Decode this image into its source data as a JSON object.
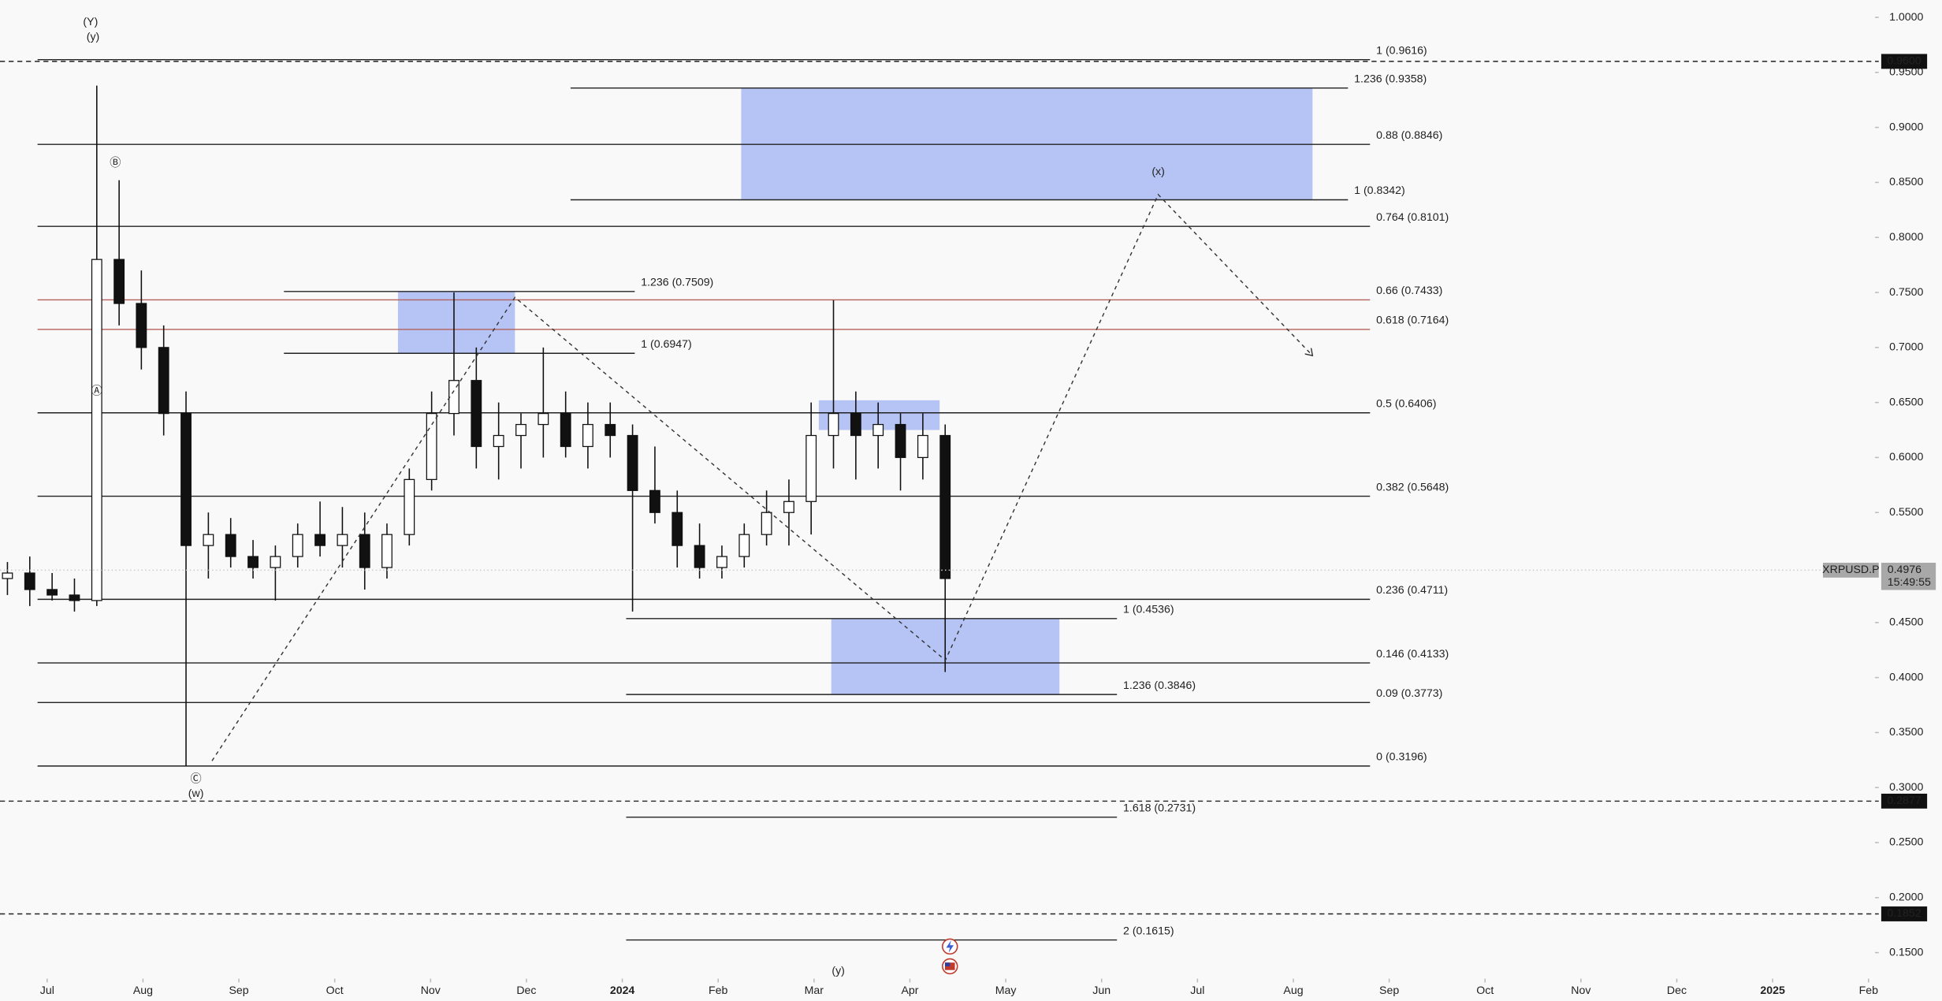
{
  "chart_data": {
    "type": "candlestick",
    "symbol": "XRPUSD.P",
    "xlim": [
      -0.4916,
      19.068
    ],
    "ylim": [
      0.1263,
      1.0158
    ],
    "xticks": [
      {
        "value": 0,
        "label": "Jul"
      },
      {
        "value": 1,
        "label": "Aug"
      },
      {
        "value": 2,
        "label": "Sep"
      },
      {
        "value": 3,
        "label": "Oct"
      },
      {
        "value": 4,
        "label": "Nov"
      },
      {
        "value": 5,
        "label": "Dec"
      },
      {
        "value": 6,
        "label": "2024"
      },
      {
        "value": 7,
        "label": "Feb"
      },
      {
        "value": 8,
        "label": "Mar"
      },
      {
        "value": 9,
        "label": "Apr"
      },
      {
        "value": 10,
        "label": "May"
      },
      {
        "value": 11,
        "label": "Jun"
      },
      {
        "value": 12,
        "label": "Jul"
      },
      {
        "value": 13,
        "label": "Aug"
      },
      {
        "value": 14,
        "label": "Sep"
      },
      {
        "value": 15,
        "label": "Oct"
      },
      {
        "value": 16,
        "label": "Nov"
      },
      {
        "value": 17,
        "label": "Dec"
      },
      {
        "value": 18,
        "label": "2025"
      },
      {
        "value": 19,
        "label": "Feb"
      }
    ],
    "yticks": [
      {
        "value": 1.0,
        "label": "1.0000"
      },
      {
        "value": 0.95,
        "label": "0.9500"
      },
      {
        "value": 0.9,
        "label": "0.9000"
      },
      {
        "value": 0.85,
        "label": "0.8500"
      },
      {
        "value": 0.8,
        "label": "0.8000"
      },
      {
        "value": 0.75,
        "label": "0.7500"
      },
      {
        "value": 0.7,
        "label": "0.7000"
      },
      {
        "value": 0.65,
        "label": "0.6500"
      },
      {
        "value": 0.6,
        "label": "0.6000"
      },
      {
        "value": 0.55,
        "label": "0.5500"
      },
      {
        "value": 0.5,
        "label": "0.5000"
      },
      {
        "value": 0.45,
        "label": "0.4500"
      },
      {
        "value": 0.4,
        "label": "0.4000"
      },
      {
        "value": 0.35,
        "label": "0.3500"
      },
      {
        "value": 0.3,
        "label": "0.3000"
      },
      {
        "value": 0.25,
        "label": "0.2500"
      },
      {
        "value": 0.2,
        "label": "0.2000"
      },
      {
        "value": 0.15,
        "label": "0.1500"
      }
    ],
    "x": [
      -0.414,
      -0.181,
      0.052,
      0.285,
      0.518,
      0.751,
      0.983,
      1.216,
      1.449,
      1.682,
      1.915,
      2.148,
      2.381,
      2.614,
      2.847,
      3.08,
      3.313,
      3.545,
      3.778,
      4.011,
      4.244,
      4.477,
      4.71,
      4.943,
      5.176,
      5.409,
      5.641,
      5.874,
      6.107,
      6.34,
      6.573,
      6.806,
      7.039,
      7.272,
      7.505,
      7.738,
      7.97,
      8.203,
      8.436,
      8.669,
      8.902,
      9.135,
      9.368
    ],
    "open": [
      0.49,
      0.495,
      0.48,
      0.475,
      0.47,
      0.78,
      0.74,
      0.7,
      0.64,
      0.52,
      0.53,
      0.51,
      0.5,
      0.51,
      0.53,
      0.52,
      0.53,
      0.5,
      0.53,
      0.58,
      0.64,
      0.67,
      0.61,
      0.62,
      0.63,
      0.64,
      0.61,
      0.63,
      0.62,
      0.57,
      0.55,
      0.52,
      0.5,
      0.51,
      0.53,
      0.55,
      0.56,
      0.62,
      0.64,
      0.62,
      0.63,
      0.6,
      0.62
    ],
    "high": [
      0.505,
      0.51,
      0.495,
      0.49,
      0.938,
      0.852,
      0.77,
      0.72,
      0.66,
      0.55,
      0.545,
      0.525,
      0.52,
      0.54,
      0.56,
      0.555,
      0.55,
      0.54,
      0.59,
      0.66,
      0.75,
      0.7,
      0.65,
      0.64,
      0.7,
      0.66,
      0.65,
      0.65,
      0.63,
      0.61,
      0.57,
      0.54,
      0.52,
      0.54,
      0.57,
      0.58,
      0.65,
      0.743,
      0.66,
      0.65,
      0.64,
      0.64,
      0.63
    ],
    "low": [
      0.475,
      0.465,
      0.47,
      0.46,
      0.465,
      0.72,
      0.68,
      0.62,
      0.3196,
      0.49,
      0.5,
      0.49,
      0.47,
      0.5,
      0.51,
      0.5,
      0.48,
      0.49,
      0.52,
      0.57,
      0.62,
      0.59,
      0.58,
      0.59,
      0.6,
      0.6,
      0.59,
      0.6,
      0.46,
      0.54,
      0.5,
      0.49,
      0.49,
      0.5,
      0.52,
      0.52,
      0.53,
      0.59,
      0.58,
      0.59,
      0.57,
      0.58,
      0.405
    ],
    "close": [
      0.495,
      0.48,
      0.475,
      0.47,
      0.78,
      0.74,
      0.7,
      0.64,
      0.52,
      0.53,
      0.51,
      0.5,
      0.51,
      0.53,
      0.52,
      0.53,
      0.5,
      0.53,
      0.58,
      0.64,
      0.67,
      0.61,
      0.62,
      0.63,
      0.64,
      0.61,
      0.63,
      0.62,
      0.57,
      0.55,
      0.52,
      0.5,
      0.51,
      0.53,
      0.55,
      0.56,
      0.62,
      0.64,
      0.62,
      0.63,
      0.6,
      0.62,
      0.49
    ],
    "levels": [
      {
        "label": "1 (0.9616)",
        "value": 0.9616,
        "x": [
          -0.1,
          13.8
        ],
        "color": "#222222"
      },
      {
        "label": "0.88 (0.8846)",
        "value": 0.8846,
        "x": [
          -0.1,
          13.8
        ],
        "color": "#222222"
      },
      {
        "label": "0.764 (0.8101)",
        "value": 0.8101,
        "x": [
          -0.1,
          13.8
        ],
        "color": "#222222"
      },
      {
        "label": "0.66 (0.7433)",
        "value": 0.7433,
        "x": [
          -0.1,
          13.8
        ],
        "color": "#b5615b"
      },
      {
        "label": "0.618 (0.7164)",
        "value": 0.7164,
        "x": [
          -0.1,
          13.8
        ],
        "color": "#b5615b"
      },
      {
        "label": "0.5 (0.6406)",
        "value": 0.6406,
        "x": [
          -0.1,
          13.8
        ],
        "color": "#222222"
      },
      {
        "label": "0.382 (0.5648)",
        "value": 0.5648,
        "x": [
          -0.1,
          13.8
        ],
        "color": "#222222"
      },
      {
        "label": "0.236 (0.4711)",
        "value": 0.4711,
        "x": [
          -0.1,
          13.8
        ],
        "color": "#222222"
      },
      {
        "label": "0.146 (0.4133)",
        "value": 0.4133,
        "x": [
          -0.1,
          13.8
        ],
        "color": "#222222"
      },
      {
        "label": "0.09 (0.3773)",
        "value": 0.3773,
        "x": [
          -0.1,
          13.8
        ],
        "color": "#222222"
      },
      {
        "label": "0 (0.3196)",
        "value": 0.3196,
        "x": [
          -0.1,
          13.8
        ],
        "color": "#222222"
      },
      {
        "label": "1.236 (0.9358)",
        "value": 0.9358,
        "x": [
          5.46,
          13.57
        ],
        "color": "#222222"
      },
      {
        "label": "1 (0.8342)",
        "value": 0.8342,
        "x": [
          5.46,
          13.57
        ],
        "color": "#222222"
      },
      {
        "label": "1.236 (0.7509)",
        "value": 0.7509,
        "x": [
          2.47,
          6.13
        ],
        "color": "#222222"
      },
      {
        "label": "1 (0.6947)",
        "value": 0.6947,
        "x": [
          2.47,
          6.13
        ],
        "color": "#222222"
      },
      {
        "label": "1 (0.4536)",
        "value": 0.4536,
        "x": [
          6.04,
          11.16
        ],
        "color": "#222222"
      },
      {
        "label": "1.236 (0.3846)",
        "value": 0.3846,
        "x": [
          6.04,
          11.16
        ],
        "color": "#222222"
      },
      {
        "label": "1.618 (0.2731)",
        "value": 0.2731,
        "x": [
          6.04,
          11.16
        ],
        "color": "#222222"
      },
      {
        "label": "2 (0.1615)",
        "value": 0.1615,
        "x": [
          6.04,
          11.16
        ],
        "color": "#222222"
      }
    ],
    "zones": [
      {
        "x": [
          7.24,
          13.2
        ],
        "y": [
          0.8342,
          0.9358
        ]
      },
      {
        "x": [
          3.66,
          4.88
        ],
        "y": [
          0.6947,
          0.7509
        ]
      },
      {
        "x": [
          8.05,
          9.31
        ],
        "y": [
          0.625,
          0.652
        ]
      },
      {
        "x": [
          8.18,
          10.56
        ],
        "y": [
          0.3846,
          0.4536
        ]
      }
    ],
    "zone_color": "#a9bbf3",
    "projection": {
      "x": [
        1.72,
        4.88,
        9.37,
        11.59,
        13.2
      ],
      "y": [
        0.3243,
        0.7455,
        0.4157,
        0.839,
        0.6926
      ]
    },
    "price_lines": [
      {
        "value": 0.96,
        "label": "0.9600"
      },
      {
        "value": 0.2877,
        "label": "0.2877"
      },
      {
        "value": 0.1852,
        "label": "0.1852"
      }
    ],
    "last_price": {
      "value": 0.4976,
      "label": "0.4976",
      "countdown": "15:49:55"
    },
    "annotations": [
      "(Y)",
      "(y)",
      "Ⓑ",
      "Ⓐ",
      "Ⓒ",
      "(w)",
      "(x)",
      "(y)"
    ]
  }
}
